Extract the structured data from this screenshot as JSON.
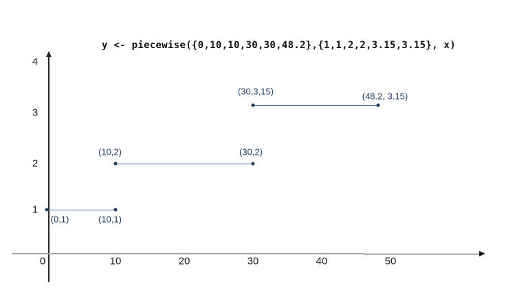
{
  "chart_data": {
    "type": "line",
    "title": "y <- piecewise({0,10,10,30,30,48.2},{1,1,2,2,3.15,3.15}, x)",
    "xlabel": "",
    "ylabel": "",
    "xlim": [
      0,
      57
    ],
    "ylim": [
      0,
      4.3
    ],
    "grid": false,
    "legend": "none",
    "x_ticks": [
      0,
      10,
      20,
      30,
      40,
      50
    ],
    "y_ticks": [
      1,
      2,
      3,
      4
    ],
    "colors": {
      "point_and_label": "#1f3d63",
      "segment_line": "#4a6e99",
      "x_axis": "#a6a6a6",
      "y_axis": "#262626",
      "tick_text": "#1c1c1c",
      "title_text": "#111111",
      "background": "#ffffff"
    },
    "segments": [
      {
        "x1": 0,
        "y1": 1,
        "x2": 10,
        "y2": 1,
        "point_labels": [
          {
            "text": "(0,1)",
            "dx": 19,
            "dy": 14
          },
          {
            "text": "(10,1)",
            "dx": -8,
            "dy": 14
          }
        ]
      },
      {
        "x1": 10,
        "y1": 2,
        "x2": 30,
        "y2": 2,
        "point_labels": [
          {
            "text": "(10,2)",
            "dx": -8,
            "dy": -17
          },
          {
            "text": "(30,2)",
            "dx": -3,
            "dy": -17
          }
        ]
      },
      {
        "x1": 30,
        "y1": 3.15,
        "x2": 48.2,
        "y2": 3.15,
        "point_labels": [
          {
            "text": "(30,3,15)",
            "dx": 4,
            "dy": -20
          },
          {
            "text": "(48.2, 3.15)",
            "dx": 10,
            "dy": -13
          }
        ]
      }
    ]
  }
}
